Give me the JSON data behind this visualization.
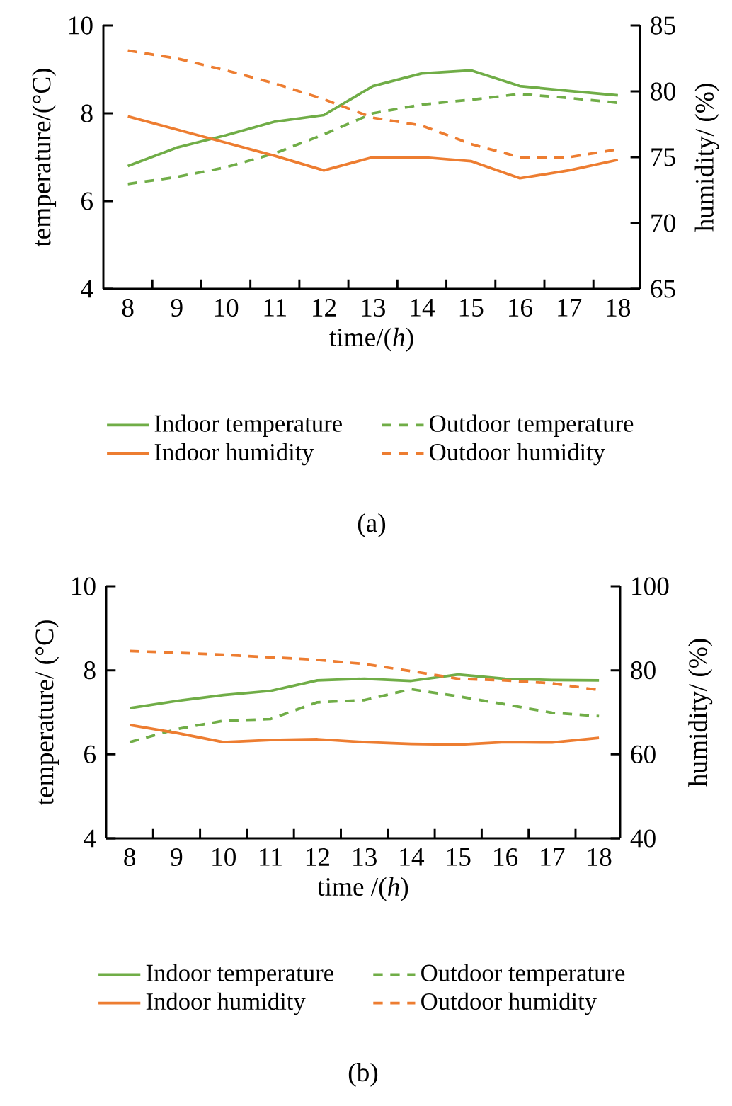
{
  "chart_data": [
    {
      "type": "line",
      "xlabel": "time/(*h*)",
      "ylabel": "temperature/(°C)",
      "y2label": "humidity/ (%)",
      "categories": [
        "8",
        "9",
        "10",
        "11",
        "12",
        "13",
        "14",
        "15",
        "16",
        "17",
        "18"
      ],
      "ylim": [
        4,
        10
      ],
      "yticks": [
        4,
        6,
        8,
        10
      ],
      "y2lim": [
        65,
        85
      ],
      "y2ticks": [
        65,
        70,
        75,
        80,
        85
      ],
      "legend": "bottom",
      "annotations": [
        "(a)"
      ],
      "series": [
        {
          "name": "Indoor temperature",
          "color": "#70ad47",
          "line_style": "solid",
          "values": [
            6.8,
            7.22,
            7.5,
            7.81,
            7.96,
            8.62,
            8.91,
            8.98,
            8.62,
            8.51,
            8.41
          ]
        },
        {
          "name": "Outdoor temperature",
          "color": "#70ad47",
          "line_style": "dashed",
          "values": [
            6.39,
            6.55,
            6.77,
            7.09,
            7.52,
            8.0,
            8.2,
            8.31,
            8.44,
            8.35,
            8.24
          ]
        },
        {
          "name": "Indoor humidity",
          "color": "#ed7d31",
          "line_style": "solid",
          "axis": "y2",
          "values": [
            78.1,
            77.1,
            76.1,
            75.1,
            74.0,
            75.0,
            75.0,
            74.7,
            73.4,
            74.0,
            74.8
          ]
        },
        {
          "name": "Outdoor humidity",
          "color": "#ed7d31",
          "line_style": "dashed",
          "axis": "y2",
          "values": [
            83.1,
            82.5,
            81.6,
            80.6,
            79.4,
            78.0,
            77.4,
            76.0,
            75.0,
            75.0,
            75.6
          ]
        }
      ]
    },
    {
      "type": "line",
      "xlabel": "time /(*h*)",
      "ylabel": "temperature/ (°C)",
      "y2label": "humidity/ (%)",
      "categories": [
        "8",
        "9",
        "10",
        "11",
        "12",
        "13",
        "14",
        "15",
        "16",
        "17",
        "18"
      ],
      "ylim": [
        4,
        10
      ],
      "yticks": [
        4,
        6,
        8,
        10
      ],
      "y2lim": [
        40,
        100
      ],
      "y2ticks": [
        40,
        60,
        80,
        100
      ],
      "legend": "bottom",
      "annotations": [
        "(b)"
      ],
      "series": [
        {
          "name": "Indoor temperature",
          "color": "#70ad47",
          "line_style": "solid",
          "values": [
            7.1,
            7.27,
            7.41,
            7.51,
            7.76,
            7.8,
            7.75,
            7.9,
            7.8,
            7.77,
            7.76
          ]
        },
        {
          "name": "Outdoor temperature",
          "color": "#70ad47",
          "line_style": "dashed",
          "values": [
            6.29,
            6.6,
            6.8,
            6.84,
            7.24,
            7.29,
            7.55,
            7.38,
            7.19,
            6.99,
            6.91
          ]
        },
        {
          "name": "Indoor humidity",
          "color": "#ed7d31",
          "line_style": "solid",
          "axis": "y2",
          "values": [
            67.0,
            65.1,
            62.9,
            63.4,
            63.6,
            62.9,
            62.5,
            62.3,
            62.9,
            62.8,
            63.9
          ]
        },
        {
          "name": "Outdoor humidity",
          "color": "#ed7d31",
          "line_style": "dashed",
          "axis": "y2",
          "values": [
            84.6,
            84.2,
            83.7,
            83.1,
            82.5,
            81.5,
            79.8,
            78.0,
            77.6,
            76.9,
            75.3
          ]
        }
      ]
    }
  ]
}
